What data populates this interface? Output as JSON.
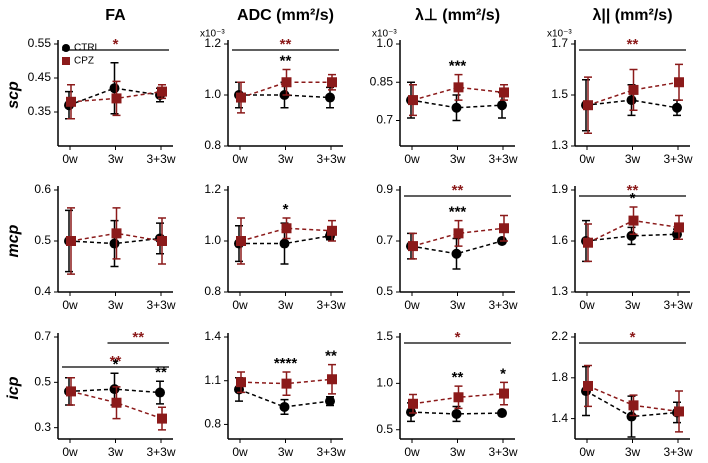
{
  "chart_data": [
    {
      "type": "line",
      "title": "FA",
      "ylabel": "scp",
      "legend": "upper left",
      "categories": [
        "0w",
        "3w",
        "3+3w"
      ],
      "ylim": [
        0.25,
        0.55
      ],
      "yticks": [
        0.35,
        0.45,
        0.55
      ],
      "series": [
        {
          "name": "CTRL",
          "color": "#000000",
          "marker": "circle",
          "values": [
            0.37,
            0.42,
            0.4
          ],
          "errors": [
            0.04,
            0.075,
            0.02
          ]
        },
        {
          "name": "CPZ",
          "color": "#8b1a1a",
          "marker": "square",
          "values": [
            0.38,
            0.39,
            0.41
          ],
          "errors": [
            0.05,
            0.05,
            0.02
          ]
        }
      ],
      "brackets": [
        {
          "text": "*",
          "from": "0w",
          "to": "3+3w",
          "color": "#8b1a1a"
        }
      ],
      "annotations": []
    },
    {
      "type": "line",
      "title": "ADC (mm²/s)",
      "scale_label": "x10⁻³",
      "categories": [
        "0w",
        "3w",
        "3+3w"
      ],
      "ylim": [
        0.8,
        1.2
      ],
      "yticks": [
        0.8,
        {
          "value": 1,
          "label": "1.0"
        },
        1.2
      ],
      "series": [
        {
          "name": "CTRL",
          "color": "#000000",
          "marker": "circle",
          "values": [
            1.0,
            1.0,
            0.99
          ],
          "errors": [
            0.05,
            0.05,
            0.04
          ]
        },
        {
          "name": "CPZ",
          "color": "#8b1a1a",
          "marker": "square",
          "values": [
            0.99,
            1.05,
            1.05
          ],
          "errors": [
            0.06,
            0.05,
            0.03
          ]
        }
      ],
      "brackets": [
        {
          "text": "**",
          "from": "0w",
          "to": "3+3w",
          "color": "#8b1a1a"
        }
      ],
      "annotations": [
        {
          "text": "**",
          "at": "3w",
          "color": "#000000"
        }
      ]
    },
    {
      "type": "line",
      "title": "λ⊥ (mm²/s)",
      "scale_label": "x10⁻³",
      "categories": [
        "0w",
        "3w",
        "3+3w"
      ],
      "ylim": [
        0.6,
        1.0
      ],
      "yticks": [
        0.7,
        0.85,
        {
          "value": 1,
          "label": "1.0"
        }
      ],
      "series": [
        {
          "name": "CTRL",
          "color": "#000000",
          "marker": "circle",
          "values": [
            0.78,
            0.75,
            0.76
          ],
          "errors": [
            0.07,
            0.05,
            0.05
          ]
        },
        {
          "name": "CPZ",
          "color": "#8b1a1a",
          "marker": "square",
          "values": [
            0.78,
            0.83,
            0.81
          ],
          "errors": [
            0.06,
            0.05,
            0.03
          ]
        }
      ],
      "brackets": [],
      "annotations": [
        {
          "text": "***",
          "at": "3w",
          "color": "#000000"
        }
      ]
    },
    {
      "type": "line",
      "title": "λ|| (mm²/s)",
      "scale_label": "x10⁻³",
      "categories": [
        "0w",
        "3w",
        "3+3w"
      ],
      "ylim": [
        1.3,
        1.7
      ],
      "yticks": [
        1.3,
        1.5,
        1.7
      ],
      "series": [
        {
          "name": "CTRL",
          "color": "#000000",
          "marker": "circle",
          "values": [
            1.46,
            1.48,
            1.45
          ],
          "errors": [
            0.1,
            0.06,
            0.03
          ]
        },
        {
          "name": "CPZ",
          "color": "#8b1a1a",
          "marker": "square",
          "values": [
            1.46,
            1.52,
            1.55
          ],
          "errors": [
            0.11,
            0.08,
            0.07
          ]
        }
      ],
      "brackets": [
        {
          "text": "**",
          "from": "0w",
          "to": "3+3w",
          "color": "#8b1a1a"
        }
      ],
      "annotations": []
    },
    {
      "type": "line",
      "ylabel": "mcp",
      "categories": [
        "0w",
        "3w",
        "3+3w"
      ],
      "ylim": [
        0.4,
        0.6
      ],
      "yticks": [
        0.4,
        0.5,
        0.6
      ],
      "series": [
        {
          "name": "CTRL",
          "color": "#000000",
          "marker": "circle",
          "values": [
            0.5,
            0.495,
            0.505
          ],
          "errors": [
            0.06,
            0.045,
            0.03
          ]
        },
        {
          "name": "CPZ",
          "color": "#8b1a1a",
          "marker": "square",
          "values": [
            0.5,
            0.515,
            0.5
          ],
          "errors": [
            0.065,
            0.05,
            0.045
          ]
        }
      ],
      "brackets": [],
      "annotations": []
    },
    {
      "type": "line",
      "categories": [
        "0w",
        "3w",
        "3+3w"
      ],
      "ylim": [
        0.8,
        1.2
      ],
      "yticks": [
        0.8,
        {
          "value": 1,
          "label": "1.0"
        },
        1.2
      ],
      "series": [
        {
          "name": "CTRL",
          "color": "#000000",
          "marker": "circle",
          "values": [
            0.99,
            0.99,
            1.02
          ],
          "errors": [
            0.07,
            0.08,
            0.015
          ]
        },
        {
          "name": "CPZ",
          "color": "#8b1a1a",
          "marker": "square",
          "values": [
            1.0,
            1.05,
            1.04
          ],
          "errors": [
            0.09,
            0.04,
            0.04
          ]
        }
      ],
      "brackets": [],
      "annotations": [
        {
          "text": "*",
          "at": "3w",
          "color": "#000000"
        }
      ]
    },
    {
      "type": "line",
      "categories": [
        "0w",
        "3w",
        "3+3w"
      ],
      "ylim": [
        0.5,
        0.9
      ],
      "yticks": [
        0.5,
        0.7,
        0.9
      ],
      "series": [
        {
          "name": "CTRL",
          "color": "#000000",
          "marker": "circle",
          "values": [
            0.68,
            0.65,
            0.7
          ],
          "errors": [
            0.05,
            0.06,
            0.01
          ]
        },
        {
          "name": "CPZ",
          "color": "#8b1a1a",
          "marker": "square",
          "values": [
            0.68,
            0.73,
            0.75
          ],
          "errors": [
            0.05,
            0.05,
            0.05
          ]
        }
      ],
      "brackets": [
        {
          "text": "**",
          "from": "0w",
          "to": "3+3w",
          "color": "#8b1a1a"
        }
      ],
      "annotations": [
        {
          "text": "***",
          "at": "3w",
          "color": "#000000"
        }
      ]
    },
    {
      "type": "line",
      "categories": [
        "0w",
        "3w",
        "3+3w"
      ],
      "ylim": [
        1.3,
        1.9
      ],
      "yticks": [
        1.3,
        1.6,
        1.9
      ],
      "series": [
        {
          "name": "CTRL",
          "color": "#000000",
          "marker": "circle",
          "values": [
            1.6,
            1.63,
            1.64
          ],
          "errors": [
            0.12,
            0.05,
            0.03
          ]
        },
        {
          "name": "CPZ",
          "color": "#8b1a1a",
          "marker": "square",
          "values": [
            1.59,
            1.72,
            1.68
          ],
          "errors": [
            0.11,
            0.08,
            0.07
          ]
        }
      ],
      "brackets": [
        {
          "text": "**",
          "from": "0w",
          "to": "3+3w",
          "color": "#8b1a1a"
        }
      ],
      "annotations": [
        {
          "text": "*",
          "at": "3w",
          "color": "#000000"
        }
      ]
    },
    {
      "type": "line",
      "ylabel": "icp",
      "categories": [
        "0w",
        "3w",
        "3+3w"
      ],
      "ylim": [
        0.25,
        0.7
      ],
      "yticks": [
        0.3,
        0.5,
        0.7
      ],
      "series": [
        {
          "name": "CTRL",
          "color": "#000000",
          "marker": "circle",
          "values": [
            0.46,
            0.47,
            0.455
          ],
          "errors": [
            0.06,
            0.07,
            0.05
          ]
        },
        {
          "name": "CPZ",
          "color": "#8b1a1a",
          "marker": "square",
          "values": [
            0.46,
            0.41,
            0.34
          ],
          "errors": [
            0.06,
            0.07,
            0.05
          ]
        }
      ],
      "brackets": [
        {
          "text": "**",
          "from": "0w",
          "to": "3+3w",
          "color": "#8b1a1a"
        },
        {
          "text": "**",
          "from": "3w",
          "to": "3+3w",
          "color": "#8b1a1a"
        }
      ],
      "annotations": [
        {
          "text": "*",
          "at": "3w",
          "color": "#000000"
        },
        {
          "text": "**",
          "at": "3+3w",
          "color": "#000000"
        }
      ]
    },
    {
      "type": "line",
      "categories": [
        "0w",
        "3w",
        "3+3w"
      ],
      "ylim": [
        0.7,
        1.4
      ],
      "yticks": [
        0.8,
        1.1,
        1.4
      ],
      "series": [
        {
          "name": "CTRL",
          "color": "#000000",
          "marker": "circle",
          "values": [
            1.04,
            0.92,
            0.96
          ],
          "errors": [
            0.08,
            0.05,
            0.03
          ]
        },
        {
          "name": "CPZ",
          "color": "#8b1a1a",
          "marker": "square",
          "values": [
            1.09,
            1.08,
            1.11
          ],
          "errors": [
            0.07,
            0.08,
            0.1
          ]
        }
      ],
      "brackets": [],
      "annotations": [
        {
          "text": "****",
          "at": "3w",
          "color": "#000000"
        },
        {
          "text": "**",
          "at": "3+3w",
          "color": "#000000"
        }
      ]
    },
    {
      "type": "line",
      "categories": [
        "0w",
        "3w",
        "3+3w"
      ],
      "ylim": [
        0.4,
        1.5
      ],
      "yticks": [
        0.5,
        {
          "value": 1,
          "label": "1.0"
        },
        1.5
      ],
      "series": [
        {
          "name": "CTRL",
          "color": "#000000",
          "marker": "circle",
          "values": [
            0.69,
            0.67,
            0.68
          ],
          "errors": [
            0.1,
            0.08,
            0.02
          ]
        },
        {
          "name": "CPZ",
          "color": "#8b1a1a",
          "marker": "square",
          "values": [
            0.78,
            0.85,
            0.89
          ],
          "errors": [
            0.1,
            0.12,
            0.12
          ]
        }
      ],
      "brackets": [
        {
          "text": "*",
          "from": "0w",
          "to": "3+3w",
          "color": "#8b1a1a"
        }
      ],
      "annotations": [
        {
          "text": "**",
          "at": "3w",
          "color": "#000000"
        },
        {
          "text": "*",
          "at": "3+3w",
          "color": "#000000"
        }
      ]
    },
    {
      "type": "line",
      "categories": [
        "0w",
        "3w",
        "3+3w"
      ],
      "ylim": [
        1.2,
        2.2
      ],
      "yticks": [
        1.4,
        1.8,
        2.2
      ],
      "series": [
        {
          "name": "CTRL",
          "color": "#000000",
          "marker": "circle",
          "values": [
            1.67,
            1.42,
            1.46
          ],
          "errors": [
            0.24,
            0.2,
            0.1
          ]
        },
        {
          "name": "CPZ",
          "color": "#8b1a1a",
          "marker": "square",
          "values": [
            1.72,
            1.53,
            1.47
          ],
          "errors": [
            0.2,
            0.1,
            0.2
          ]
        }
      ],
      "brackets": [
        {
          "text": "*",
          "from": "0w",
          "to": "3+3w",
          "color": "#8b1a1a"
        }
      ],
      "annotations": []
    }
  ]
}
